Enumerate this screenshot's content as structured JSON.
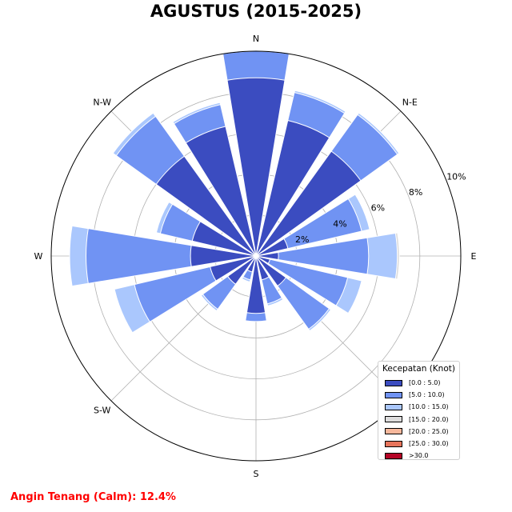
{
  "title": "AGUSTUS (2015-2025)",
  "calm_text": "Angin Tenang (Calm): 12.4%",
  "directions": [
    "N",
    "N-E",
    "E",
    "S-E",
    "S",
    "S-W",
    "W",
    "N-W"
  ],
  "radial_ticks": [
    "2%",
    "4%",
    "6%",
    "8%",
    "10%"
  ],
  "legend": {
    "title": "Kecepatan (Knot)",
    "items": [
      {
        "label": "[0.0 : 5.0)",
        "color": "#3b4cc0"
      },
      {
        "label": "[5.0 : 10.0)",
        "color": "#7093f3"
      },
      {
        "label": "[10.0 : 15.0)",
        "color": "#aac7fd"
      },
      {
        "label": "[15.0 : 20.0)",
        "color": "#dddcdc"
      },
      {
        "label": "[20.0 : 25.0)",
        "color": "#f7b89c"
      },
      {
        "label": "[25.0 : 30.0)",
        "color": "#e7745b"
      },
      {
        "label": ">30.0",
        "color": "#b40426"
      }
    ]
  },
  "chart_data": {
    "type": "windrose",
    "title": "AGUSTUS (2015-2025)",
    "unit": "%",
    "rmax": 10,
    "rticks": [
      2,
      4,
      6,
      8,
      10
    ],
    "direction_labels": [
      "N",
      "N-E",
      "E",
      "S-E",
      "S",
      "S-W",
      "W",
      "N-W"
    ],
    "sectors_deg": [
      0,
      22.5,
      45,
      67.5,
      90,
      112.5,
      135,
      157.5,
      180,
      202.5,
      225,
      247.5,
      270,
      292.5,
      315,
      337.5
    ],
    "bins": [
      "[0.0 : 5.0)",
      "[5.0 : 10.0)",
      "[10.0 : 15.0)",
      "[15.0 : 20.0)",
      "[20.0 : 25.0)",
      "[25.0 : 30.0)",
      ">30.0"
    ],
    "bin_colors": [
      "#3b4cc0",
      "#7093f3",
      "#aac7fd",
      "#dddcdc",
      "#f7b89c",
      "#e7745b",
      "#b40426"
    ],
    "stacked_values": [
      [
        8.7,
        10.0,
        10.05,
        0,
        0,
        0,
        0
      ],
      [
        6.8,
        8.2,
        8.3,
        0,
        0,
        0,
        0
      ],
      [
        6.3,
        8.5,
        8.6,
        0,
        0,
        0,
        0
      ],
      [
        1.6,
        5.3,
        5.7,
        0,
        0,
        0,
        0
      ],
      [
        1.1,
        5.5,
        6.9,
        7.0,
        0,
        0,
        0
      ],
      [
        0.7,
        4.6,
        5.3,
        0,
        0,
        0,
        0
      ],
      [
        1.8,
        4.4,
        4.5,
        0,
        0,
        0,
        0
      ],
      [
        1.2,
        2.4,
        2.5,
        0,
        0,
        0,
        0
      ],
      [
        2.8,
        3.2,
        0,
        0,
        0,
        0,
        0
      ],
      [
        0.8,
        1.2,
        1.3,
        0,
        0,
        0,
        0
      ],
      [
        1.7,
        3.2,
        3.3,
        0,
        0,
        0,
        0
      ],
      [
        2.3,
        6.1,
        7.1,
        0,
        0,
        0,
        0
      ],
      [
        3.2,
        8.3,
        9.1,
        0,
        0,
        0,
        0
      ],
      [
        3.2,
        4.8,
        5.0,
        0,
        0,
        0,
        0
      ],
      [
        6.0,
        8.4,
        8.6,
        0,
        0,
        0,
        0
      ],
      [
        6.5,
        7.6,
        7.7,
        0,
        0,
        0,
        0
      ]
    ]
  }
}
